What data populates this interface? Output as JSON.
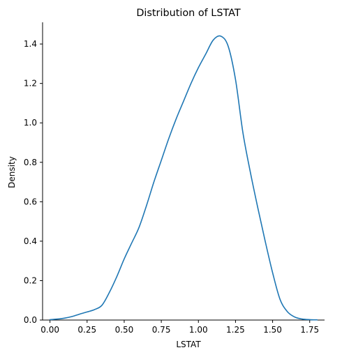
{
  "chart_data": {
    "type": "line",
    "title": "Distribution of LSTAT",
    "xlabel": "LSTAT",
    "ylabel": "Density",
    "xlim": [
      -0.05,
      1.85
    ],
    "ylim": [
      0,
      1.51
    ],
    "x_ticks": [
      "0.00",
      "0.25",
      "0.50",
      "0.75",
      "1.00",
      "1.25",
      "1.50",
      "1.75"
    ],
    "y_ticks": [
      "0.0",
      "0.2",
      "0.4",
      "0.6",
      "0.8",
      "1.0",
      "1.2",
      "1.4"
    ],
    "grid": false,
    "legend": "none",
    "series": [
      {
        "color": "#1f77b4",
        "x": [
          0.0,
          0.05,
          0.1,
          0.15,
          0.2,
          0.25,
          0.3,
          0.35,
          0.4,
          0.45,
          0.5,
          0.55,
          0.6,
          0.65,
          0.7,
          0.75,
          0.8,
          0.85,
          0.9,
          0.95,
          1.0,
          1.05,
          1.1,
          1.15,
          1.2,
          1.25,
          1.3,
          1.35,
          1.4,
          1.45,
          1.5,
          1.55,
          1.6,
          1.65,
          1.7,
          1.75,
          1.8
        ],
        "y": [
          0.002,
          0.005,
          0.01,
          0.018,
          0.03,
          0.041,
          0.053,
          0.075,
          0.14,
          0.22,
          0.31,
          0.39,
          0.47,
          0.58,
          0.7,
          0.81,
          0.92,
          1.02,
          1.11,
          1.2,
          1.28,
          1.35,
          1.42,
          1.44,
          1.39,
          1.22,
          0.95,
          0.75,
          0.57,
          0.4,
          0.24,
          0.105,
          0.042,
          0.015,
          0.005,
          0.002,
          0.001
        ]
      }
    ]
  }
}
